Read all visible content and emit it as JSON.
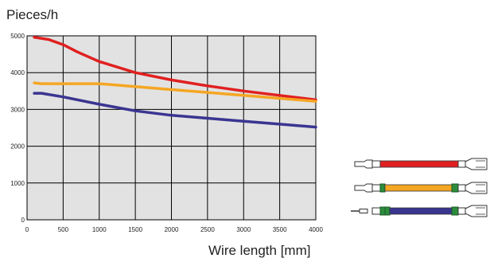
{
  "chart_data": {
    "type": "line",
    "ylabel": "Pieces/h",
    "xlabel": "Wire length [mm]",
    "xlim": [
      0,
      4000
    ],
    "ylim": [
      0,
      5000
    ],
    "x_ticks": [
      0,
      500,
      1000,
      1500,
      2000,
      2500,
      3000,
      3500,
      4000
    ],
    "y_ticks": [
      0,
      1000,
      2000,
      3000,
      4000,
      5000
    ],
    "grid": true,
    "plot_background": "#e2e2e2",
    "series": [
      {
        "color": "#e02020",
        "x": [
          100,
          300,
          500,
          700,
          1000,
          1500,
          2000,
          2500,
          3000,
          3500,
          4000
        ],
        "y": [
          4960,
          4900,
          4760,
          4560,
          4300,
          4000,
          3800,
          3640,
          3500,
          3380,
          3260
        ]
      },
      {
        "color": "#f5a623",
        "x": [
          100,
          200,
          500,
          1000,
          1500,
          2000,
          2500,
          3000,
          3500,
          4000
        ],
        "y": [
          3720,
          3700,
          3700,
          3700,
          3620,
          3540,
          3460,
          3380,
          3300,
          3220
        ]
      },
      {
        "color": "#3a3591",
        "x": [
          100,
          200,
          500,
          1000,
          1500,
          2000,
          2500,
          3000,
          3500,
          4000
        ],
        "y": [
          3440,
          3440,
          3340,
          3140,
          2960,
          2840,
          2760,
          2680,
          2600,
          2520
        ]
      }
    ],
    "wire_icons": [
      {
        "name": "wire-icon-red",
        "color": "#e02020",
        "variant": "single-seal"
      },
      {
        "name": "wire-icon-orange",
        "color": "#f5a623",
        "variant": "one-seal"
      },
      {
        "name": "wire-icon-blue",
        "color": "#3a3591",
        "variant": "two-seals"
      }
    ]
  }
}
